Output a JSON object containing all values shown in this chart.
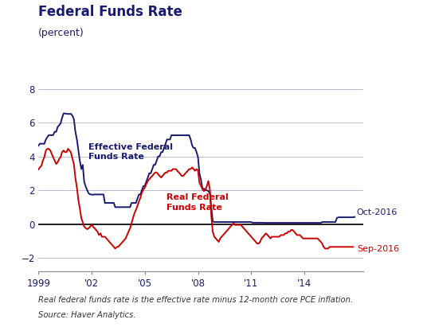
{
  "title": "Federal Funds Rate",
  "subtitle": "(percent)",
  "footnote1": "Real federal funds rate is the effective rate minus 12-month core PCE inflation.",
  "footnote2": "Source: Haver Analytics.",
  "xlim_start": 1999.0,
  "xlim_end": 2017.3,
  "ylim": [
    -2.8,
    8.8
  ],
  "yticks": [
    -2,
    0,
    2,
    4,
    6,
    8
  ],
  "xtick_years": [
    1999,
    2002,
    2005,
    2008,
    2011,
    2014
  ],
  "xtick_labels": [
    "1999",
    "'02",
    "'05",
    "'08",
    "'11",
    "'14"
  ],
  "effective_label": "Effective Federal\nFunds Rate",
  "real_label": "Real Federal\nFunds Rate",
  "effective_color": "#1a1a6e",
  "real_color": "#cc0000",
  "annotation_effective": "Oct-2016",
  "annotation_real": "Sep-2016",
  "annotation_effective_value": 0.42,
  "annotation_real_value": -1.35,
  "title_color": "#1a1a6e",
  "grid_color": "#b0b0cc",
  "background_color": "#ffffff",
  "zero_line_color": "#000000",
  "effective_dates": [
    1999.0,
    1999.08,
    1999.17,
    1999.25,
    1999.33,
    1999.42,
    1999.5,
    1999.58,
    1999.67,
    1999.75,
    1999.83,
    1999.92,
    2000.0,
    2000.08,
    2000.17,
    2000.25,
    2000.33,
    2000.42,
    2000.5,
    2000.58,
    2000.67,
    2000.75,
    2000.83,
    2000.92,
    2001.0,
    2001.08,
    2001.17,
    2001.25,
    2001.33,
    2001.42,
    2001.5,
    2001.58,
    2001.67,
    2001.75,
    2001.83,
    2001.92,
    2002.0,
    2002.08,
    2002.17,
    2002.25,
    2002.33,
    2002.42,
    2002.5,
    2002.58,
    2002.67,
    2002.75,
    2002.83,
    2002.92,
    2003.0,
    2003.08,
    2003.17,
    2003.25,
    2003.33,
    2003.42,
    2003.5,
    2003.58,
    2003.67,
    2003.75,
    2003.83,
    2003.92,
    2004.0,
    2004.08,
    2004.17,
    2004.25,
    2004.33,
    2004.42,
    2004.5,
    2004.58,
    2004.67,
    2004.75,
    2004.83,
    2004.92,
    2005.0,
    2005.08,
    2005.17,
    2005.25,
    2005.33,
    2005.42,
    2005.5,
    2005.58,
    2005.67,
    2005.75,
    2005.83,
    2005.92,
    2006.0,
    2006.08,
    2006.17,
    2006.25,
    2006.33,
    2006.42,
    2006.5,
    2006.58,
    2006.67,
    2006.75,
    2006.83,
    2006.92,
    2007.0,
    2007.08,
    2007.17,
    2007.25,
    2007.33,
    2007.42,
    2007.5,
    2007.58,
    2007.67,
    2007.75,
    2007.83,
    2007.92,
    2008.0,
    2008.08,
    2008.17,
    2008.25,
    2008.33,
    2008.42,
    2008.5,
    2008.58,
    2008.67,
    2008.75,
    2008.83,
    2008.92,
    2009.0,
    2009.08,
    2009.17,
    2009.25,
    2009.33,
    2009.42,
    2009.5,
    2009.58,
    2009.67,
    2009.75,
    2009.83,
    2009.92,
    2010.0,
    2010.08,
    2010.17,
    2010.25,
    2010.33,
    2010.42,
    2010.5,
    2010.58,
    2010.67,
    2010.75,
    2010.83,
    2010.92,
    2011.0,
    2011.08,
    2011.17,
    2011.25,
    2011.33,
    2011.42,
    2011.5,
    2011.58,
    2011.67,
    2011.75,
    2011.83,
    2011.92,
    2012.0,
    2012.08,
    2012.17,
    2012.25,
    2012.33,
    2012.42,
    2012.5,
    2012.58,
    2012.67,
    2012.75,
    2012.83,
    2012.92,
    2013.0,
    2013.08,
    2013.17,
    2013.25,
    2013.33,
    2013.42,
    2013.5,
    2013.58,
    2013.67,
    2013.75,
    2013.83,
    2013.92,
    2014.0,
    2014.08,
    2014.17,
    2014.25,
    2014.33,
    2014.42,
    2014.5,
    2014.58,
    2014.67,
    2014.75,
    2014.83,
    2014.92,
    2015.0,
    2015.08,
    2015.17,
    2015.25,
    2015.33,
    2015.42,
    2015.5,
    2015.58,
    2015.67,
    2015.75,
    2015.83,
    2015.92,
    2016.0,
    2016.08,
    2016.17,
    2016.25,
    2016.33,
    2016.42,
    2016.5,
    2016.58,
    2016.67,
    2016.75,
    2016.83
  ],
  "effective_values": [
    4.63,
    4.75,
    4.75,
    4.75,
    4.74,
    5.0,
    5.14,
    5.25,
    5.26,
    5.25,
    5.26,
    5.46,
    5.45,
    5.73,
    5.85,
    5.95,
    6.27,
    6.54,
    6.54,
    6.52,
    6.51,
    6.51,
    6.52,
    6.4,
    6.2,
    5.49,
    5.0,
    4.4,
    3.77,
    3.25,
    3.5,
    2.5,
    2.2,
    2.0,
    1.82,
    1.75,
    1.75,
    1.73,
    1.75,
    1.75,
    1.75,
    1.75,
    1.75,
    1.75,
    1.75,
    1.24,
    1.25,
    1.25,
    1.25,
    1.25,
    1.25,
    1.25,
    1.0,
    1.0,
    1.0,
    1.0,
    1.0,
    1.0,
    1.0,
    1.0,
    1.0,
    1.0,
    1.0,
    1.25,
    1.25,
    1.25,
    1.25,
    1.5,
    1.75,
    1.75,
    2.0,
    2.25,
    2.25,
    2.5,
    2.75,
    3.0,
    3.0,
    3.25,
    3.5,
    3.5,
    3.75,
    4.0,
    4.0,
    4.25,
    4.25,
    4.5,
    4.75,
    5.0,
    5.0,
    5.0,
    5.25,
    5.25,
    5.25,
    5.25,
    5.25,
    5.25,
    5.25,
    5.25,
    5.25,
    5.25,
    5.25,
    5.25,
    5.25,
    5.02,
    4.64,
    4.5,
    4.5,
    4.24,
    3.94,
    2.98,
    2.61,
    2.09,
    2.09,
    2.0,
    1.99,
    1.96,
    1.81,
    0.97,
    0.16,
    0.12,
    0.12,
    0.12,
    0.12,
    0.12,
    0.12,
    0.12,
    0.12,
    0.12,
    0.12,
    0.12,
    0.12,
    0.12,
    0.12,
    0.12,
    0.12,
    0.12,
    0.12,
    0.12,
    0.12,
    0.12,
    0.12,
    0.12,
    0.12,
    0.12,
    0.12,
    0.08,
    0.08,
    0.08,
    0.08,
    0.08,
    0.08,
    0.08,
    0.08,
    0.07,
    0.07,
    0.07,
    0.07,
    0.07,
    0.07,
    0.07,
    0.07,
    0.07,
    0.07,
    0.07,
    0.07,
    0.07,
    0.07,
    0.07,
    0.07,
    0.07,
    0.07,
    0.07,
    0.07,
    0.07,
    0.07,
    0.07,
    0.07,
    0.07,
    0.07,
    0.07,
    0.07,
    0.07,
    0.07,
    0.07,
    0.07,
    0.07,
    0.07,
    0.07,
    0.07,
    0.07,
    0.07,
    0.07,
    0.12,
    0.12,
    0.12,
    0.12,
    0.12,
    0.12,
    0.12,
    0.12,
    0.12,
    0.12,
    0.36,
    0.4,
    0.4,
    0.4,
    0.4,
    0.4,
    0.4,
    0.4,
    0.4,
    0.4,
    0.4,
    0.4,
    0.42
  ],
  "real_dates": [
    1999.0,
    1999.08,
    1999.17,
    1999.25,
    1999.33,
    1999.42,
    1999.5,
    1999.58,
    1999.67,
    1999.75,
    1999.83,
    1999.92,
    2000.0,
    2000.08,
    2000.17,
    2000.25,
    2000.33,
    2000.42,
    2000.5,
    2000.58,
    2000.67,
    2000.75,
    2000.83,
    2000.92,
    2001.0,
    2001.08,
    2001.17,
    2001.25,
    2001.33,
    2001.42,
    2001.5,
    2001.58,
    2001.67,
    2001.75,
    2001.83,
    2001.92,
    2002.0,
    2002.08,
    2002.17,
    2002.25,
    2002.33,
    2002.42,
    2002.5,
    2002.58,
    2002.67,
    2002.75,
    2002.83,
    2002.92,
    2003.0,
    2003.08,
    2003.17,
    2003.25,
    2003.33,
    2003.42,
    2003.5,
    2003.58,
    2003.67,
    2003.75,
    2003.83,
    2003.92,
    2004.0,
    2004.08,
    2004.17,
    2004.25,
    2004.33,
    2004.42,
    2004.5,
    2004.58,
    2004.67,
    2004.75,
    2004.83,
    2004.92,
    2005.0,
    2005.08,
    2005.17,
    2005.25,
    2005.33,
    2005.42,
    2005.5,
    2005.58,
    2005.67,
    2005.75,
    2005.83,
    2005.92,
    2006.0,
    2006.08,
    2006.17,
    2006.25,
    2006.33,
    2006.42,
    2006.5,
    2006.58,
    2006.67,
    2006.75,
    2006.83,
    2006.92,
    2007.0,
    2007.08,
    2007.17,
    2007.25,
    2007.33,
    2007.42,
    2007.5,
    2007.58,
    2007.67,
    2007.75,
    2007.83,
    2007.92,
    2008.0,
    2008.08,
    2008.17,
    2008.25,
    2008.33,
    2008.42,
    2008.5,
    2008.58,
    2008.67,
    2008.75,
    2008.83,
    2008.92,
    2009.0,
    2009.08,
    2009.17,
    2009.25,
    2009.33,
    2009.42,
    2009.5,
    2009.58,
    2009.67,
    2009.75,
    2009.83,
    2009.92,
    2010.0,
    2010.08,
    2010.17,
    2010.25,
    2010.33,
    2010.42,
    2010.5,
    2010.58,
    2010.67,
    2010.75,
    2010.83,
    2010.92,
    2011.0,
    2011.08,
    2011.17,
    2011.25,
    2011.33,
    2011.42,
    2011.5,
    2011.58,
    2011.67,
    2011.75,
    2011.83,
    2011.92,
    2012.0,
    2012.08,
    2012.17,
    2012.25,
    2012.33,
    2012.42,
    2012.5,
    2012.58,
    2012.67,
    2012.75,
    2012.83,
    2012.92,
    2013.0,
    2013.08,
    2013.17,
    2013.25,
    2013.33,
    2013.42,
    2013.5,
    2013.58,
    2013.67,
    2013.75,
    2013.83,
    2013.92,
    2014.0,
    2014.08,
    2014.17,
    2014.25,
    2014.33,
    2014.42,
    2014.5,
    2014.58,
    2014.67,
    2014.75,
    2014.83,
    2014.92,
    2015.0,
    2015.08,
    2015.17,
    2015.25,
    2015.33,
    2015.42,
    2015.5,
    2015.58,
    2015.67,
    2015.75,
    2015.83,
    2015.92,
    2016.0,
    2016.08,
    2016.17,
    2016.25,
    2016.33,
    2016.42,
    2016.5,
    2016.58,
    2016.67,
    2016.75
  ],
  "real_values": [
    3.23,
    3.35,
    3.45,
    3.75,
    3.95,
    4.35,
    4.45,
    4.45,
    4.35,
    4.15,
    3.95,
    3.75,
    3.55,
    3.65,
    3.85,
    3.95,
    4.25,
    4.35,
    4.25,
    4.25,
    4.45,
    4.35,
    4.25,
    3.85,
    3.55,
    2.75,
    2.15,
    1.45,
    0.95,
    0.35,
    0.1,
    -0.15,
    -0.25,
    -0.3,
    -0.25,
    -0.15,
    -0.05,
    -0.15,
    -0.25,
    -0.35,
    -0.45,
    -0.65,
    -0.55,
    -0.75,
    -0.75,
    -0.75,
    -0.85,
    -0.95,
    -1.05,
    -1.15,
    -1.25,
    -1.35,
    -1.45,
    -1.35,
    -1.35,
    -1.25,
    -1.15,
    -1.05,
    -0.95,
    -0.85,
    -0.65,
    -0.45,
    -0.25,
    0.05,
    0.35,
    0.65,
    0.85,
    1.05,
    1.35,
    1.55,
    1.85,
    2.05,
    2.15,
    2.35,
    2.55,
    2.65,
    2.75,
    2.85,
    2.95,
    3.05,
    3.05,
    2.95,
    2.85,
    2.75,
    2.85,
    2.95,
    3.05,
    3.05,
    3.15,
    3.15,
    3.15,
    3.25,
    3.25,
    3.25,
    3.15,
    3.05,
    2.95,
    2.85,
    2.85,
    2.95,
    3.05,
    3.15,
    3.25,
    3.25,
    3.35,
    3.25,
    3.15,
    3.25,
    3.15,
    2.45,
    2.25,
    2.05,
    1.95,
    2.05,
    2.25,
    2.55,
    2.05,
    0.45,
    -0.45,
    -0.75,
    -0.85,
    -0.95,
    -1.05,
    -0.85,
    -0.75,
    -0.65,
    -0.55,
    -0.45,
    -0.35,
    -0.25,
    -0.15,
    -0.05,
    0.05,
    -0.05,
    -0.05,
    -0.05,
    -0.05,
    -0.05,
    -0.15,
    -0.25,
    -0.35,
    -0.45,
    -0.55,
    -0.65,
    -0.75,
    -0.85,
    -0.95,
    -1.05,
    -1.15,
    -1.15,
    -1.05,
    -0.85,
    -0.75,
    -0.65,
    -0.55,
    -0.65,
    -0.75,
    -0.85,
    -0.75,
    -0.75,
    -0.75,
    -0.75,
    -0.75,
    -0.75,
    -0.65,
    -0.65,
    -0.65,
    -0.55,
    -0.55,
    -0.45,
    -0.45,
    -0.35,
    -0.35,
    -0.45,
    -0.55,
    -0.65,
    -0.65,
    -0.65,
    -0.75,
    -0.85,
    -0.85,
    -0.85,
    -0.85,
    -0.85,
    -0.85,
    -0.85,
    -0.85,
    -0.85,
    -0.85,
    -0.85,
    -0.95,
    -1.05,
    -1.15,
    -1.35,
    -1.45,
    -1.45,
    -1.45,
    -1.35,
    -1.35,
    -1.35,
    -1.35,
    -1.35,
    -1.35,
    -1.35,
    -1.35,
    -1.35,
    -1.35,
    -1.35,
    -1.35,
    -1.35,
    -1.35,
    -1.35,
    -1.35,
    -1.35
  ]
}
